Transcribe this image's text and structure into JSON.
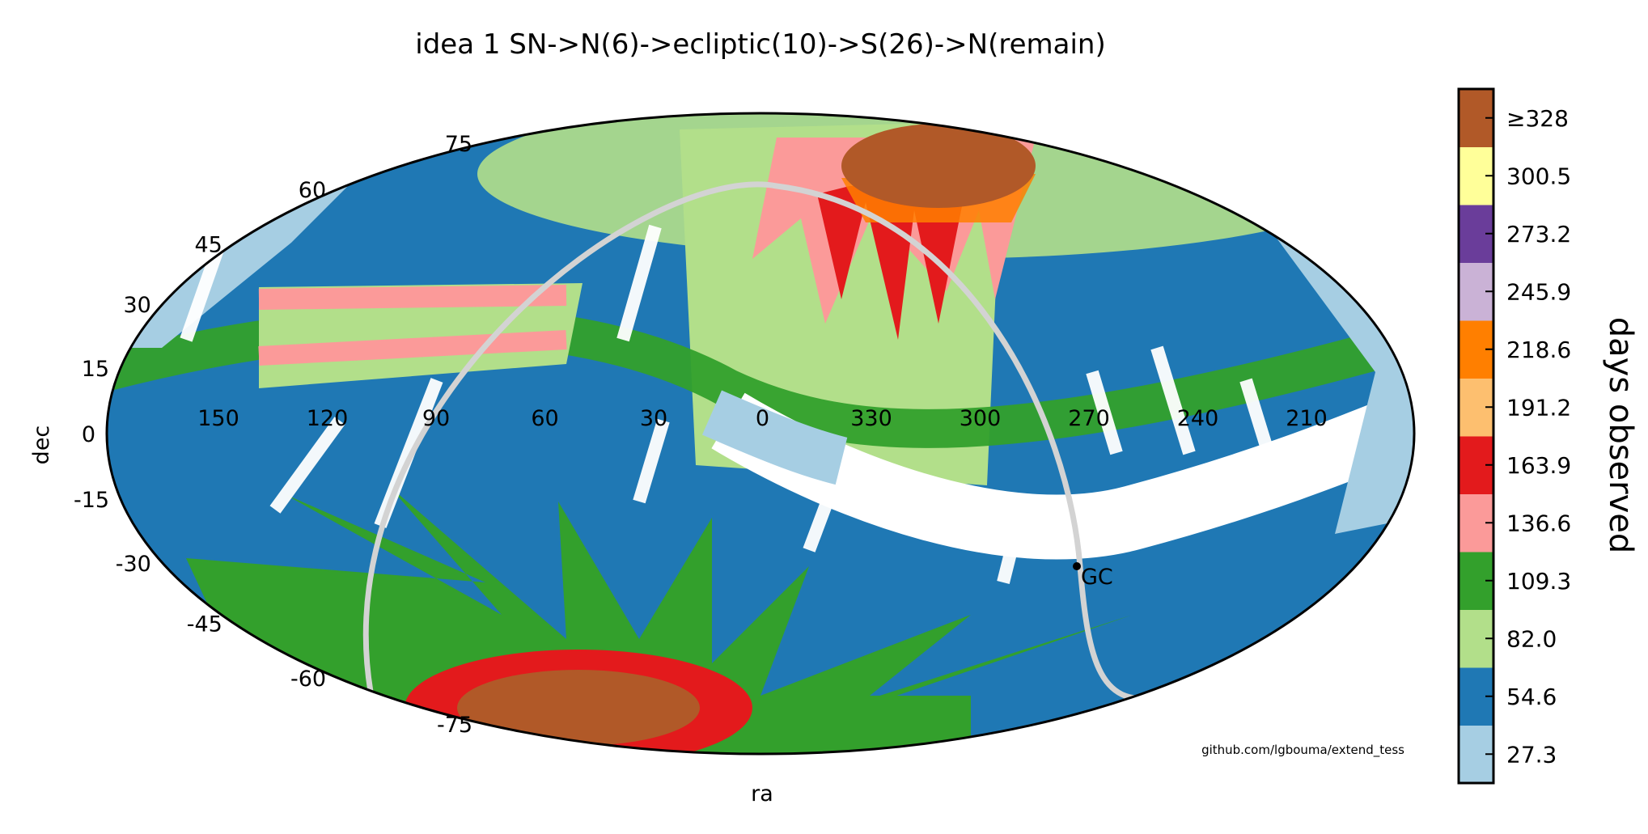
{
  "chart_data": {
    "type": "heatmap",
    "projection": "mollweide",
    "title": "idea 1 SN->N(6)->ecliptic(10)->S(26)->N(remain)",
    "xlabel": "ra",
    "ylabel": "dec",
    "ra_tick_labels": [
      "150",
      "120",
      "90",
      "60",
      "30",
      "0",
      "330",
      "300",
      "270",
      "240",
      "210"
    ],
    "dec_tick_labels": [
      "75",
      "60",
      "45",
      "30",
      "15",
      "0",
      "-15",
      "-30",
      "-45",
      "-60",
      "-75"
    ],
    "colorbar": {
      "label": "days observed",
      "tick_labels": [
        "27.3",
        "54.6",
        "82.0",
        "109.3",
        "136.6",
        "163.9",
        "191.2",
        "218.6",
        "245.9",
        "273.2",
        "300.5",
        "≥328"
      ],
      "colors": [
        "#a6cee3",
        "#1f78b4",
        "#b2df8a",
        "#33a02c",
        "#fb9a99",
        "#e31a1c",
        "#fdbf6f",
        "#ff7f00",
        "#cab2d6",
        "#6a3d9a",
        "#ffff99",
        "#b15928"
      ]
    },
    "annotations": [
      {
        "text": "GC",
        "ra": 266.4,
        "dec": -28.9
      }
    ],
    "galactic_plane_color": "#d3d3d3",
    "credit": "github.com/lgbouma/extend_tess"
  }
}
